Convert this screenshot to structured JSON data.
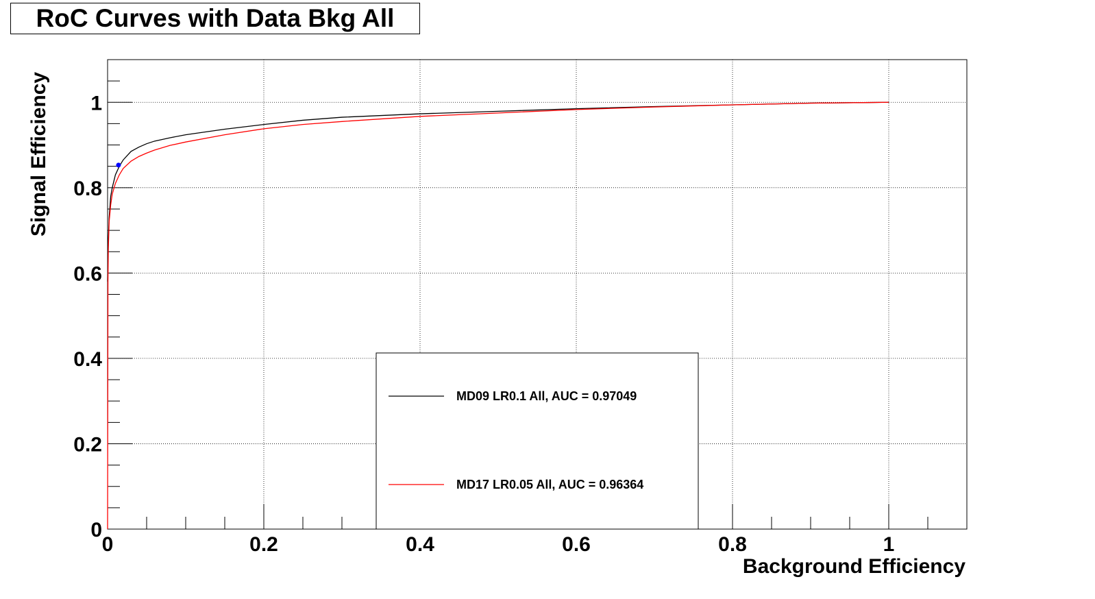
{
  "chart_data": {
    "type": "line",
    "title": "RoC Curves with Data Bkg All",
    "xlabel": "Background Efficiency",
    "ylabel": "Signal Efficiency",
    "xlim": [
      0,
      1.1
    ],
    "ylim": [
      0,
      1.1
    ],
    "xticks": [
      "0",
      "0.2",
      "0.4",
      "0.6",
      "0.8",
      "1"
    ],
    "yticks": [
      "0",
      "0.2",
      "0.4",
      "0.6",
      "0.8",
      "1"
    ],
    "grid": true,
    "legend_position": "bottom-center",
    "series": [
      {
        "name": "MD09 LR0.1 All, AUC = 0.97049",
        "color": "#000000",
        "x": [
          0,
          0.001,
          0.002,
          0.004,
          0.006,
          0.01,
          0.015,
          0.02,
          0.03,
          0.04,
          0.05,
          0.06,
          0.08,
          0.1,
          0.15,
          0.2,
          0.25,
          0.3,
          0.4,
          0.5,
          0.6,
          0.7,
          0.8,
          0.9,
          1.0
        ],
        "y": [
          0.58,
          0.68,
          0.73,
          0.78,
          0.8,
          0.83,
          0.85,
          0.865,
          0.885,
          0.895,
          0.903,
          0.909,
          0.917,
          0.924,
          0.937,
          0.948,
          0.958,
          0.965,
          0.973,
          0.979,
          0.985,
          0.99,
          0.994,
          0.998,
          1.0
        ]
      },
      {
        "name": "MD17 LR0.05 All, AUC = 0.96364",
        "color": "#ff0000",
        "x": [
          0,
          0.0005,
          0.001,
          0.002,
          0.004,
          0.006,
          0.01,
          0.015,
          0.02,
          0.03,
          0.04,
          0.05,
          0.06,
          0.08,
          0.1,
          0.15,
          0.2,
          0.25,
          0.3,
          0.4,
          0.5,
          0.6,
          0.7,
          0.8,
          0.9,
          1.0
        ],
        "y": [
          0.0,
          0.58,
          0.66,
          0.72,
          0.76,
          0.785,
          0.81,
          0.83,
          0.845,
          0.862,
          0.873,
          0.881,
          0.888,
          0.899,
          0.907,
          0.924,
          0.938,
          0.948,
          0.955,
          0.967,
          0.975,
          0.983,
          0.989,
          0.994,
          0.998,
          1.0
        ]
      }
    ],
    "marker": {
      "x": 0.014,
      "y": 0.853,
      "color": "#0000ff"
    }
  }
}
